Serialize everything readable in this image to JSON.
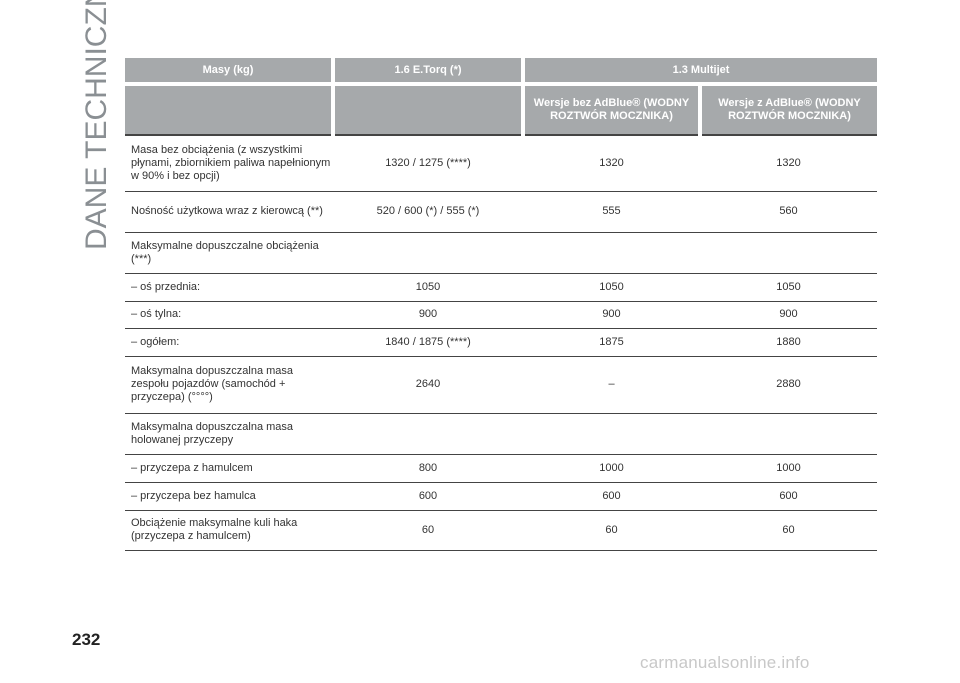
{
  "section_title": "DANE TECHNICZNE",
  "page_number": "232",
  "watermark": "carmanualsonline.info",
  "table": {
    "header": {
      "masy": "Masy (kg)",
      "engine1": "1.6 E.Torq (*)",
      "engine2": "1.3 Multijet",
      "sub1": "Wersje bez AdBlue® (WODNY ROZTWÓR MOCZNIKA)",
      "sub2": "Wersje z AdBlue® (WODNY ROZTWÓR MOCZNIKA)"
    },
    "rows": [
      {
        "label": "Masa bez obciążenia (z wszystkimi płynami, zbiornikiem paliwa napełnionym w 90% i bez opcji)",
        "v1": "1320 / 1275 (****)",
        "v2": "1320",
        "v3": "1320"
      },
      {
        "label": "Nośność użytkowa wraz z kierowcą (**)",
        "v1": "520 / 600 (*) / 555 (*)",
        "v2": "555",
        "v3": "560"
      },
      {
        "label": "Maksymalne dopuszczalne obciążenia (***)",
        "v1": "",
        "v2": "",
        "v3": ""
      },
      {
        "label": "– oś przednia:",
        "v1": "1050",
        "v2": "1050",
        "v3": "1050"
      },
      {
        "label": "– oś tylna:",
        "v1": "900",
        "v2": "900",
        "v3": "900"
      },
      {
        "label": "– ogółem:",
        "v1": "1840 / 1875 (****)",
        "v2": "1875",
        "v3": "1880"
      },
      {
        "label": "Maksymalna dopuszczalna masa zespołu pojazdów (samochód + przyczepa) (°°°°)",
        "v1": "2640",
        "v2": "–",
        "v3": "2880"
      },
      {
        "label": "Maksymalna dopuszczalna masa holowanej przyczepy",
        "v1": "",
        "v2": "",
        "v3": ""
      },
      {
        "label": "– przyczepa z hamulcem",
        "v1": "800",
        "v2": "1000",
        "v3": "1000"
      },
      {
        "label": "– przyczepa bez hamulca",
        "v1": "600",
        "v2": "600",
        "v3": "600"
      },
      {
        "label": "Obciążenie maksymalne kuli haka (przyczepa z hamulcem)",
        "v1": "60",
        "v2": "60",
        "v3": "60"
      }
    ]
  }
}
